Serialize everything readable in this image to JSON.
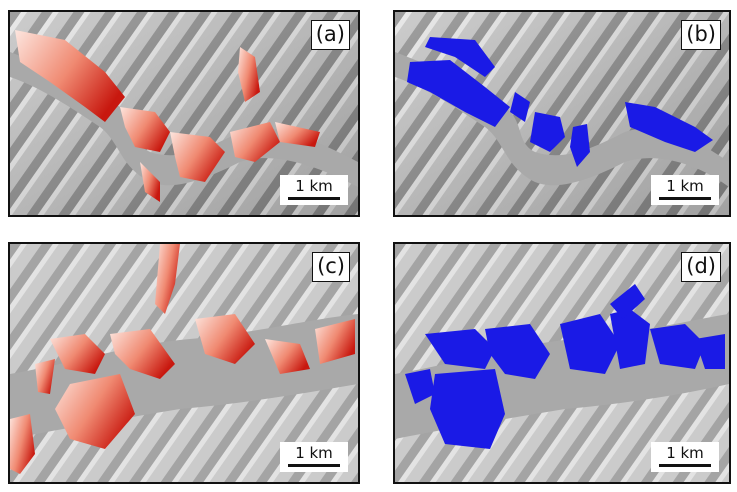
{
  "panels": [
    {
      "label": "(a)",
      "scale": "1 km",
      "fill": "red-gradient"
    },
    {
      "label": "(b)",
      "scale": "1 km",
      "fill": "#1a1ae6"
    },
    {
      "label": "(c)",
      "scale": "1 km",
      "fill": "red-gradient"
    },
    {
      "label": "(d)",
      "scale": "1 km",
      "fill": "#1a1ae6"
    }
  ],
  "colors": {
    "hillshade_base": "#b8b8b8",
    "valley_floor": "#a9a9a9",
    "hazard_high": "#d9241c",
    "hazard_low": "#fbe2dc",
    "extent": "#1a1ae6"
  }
}
